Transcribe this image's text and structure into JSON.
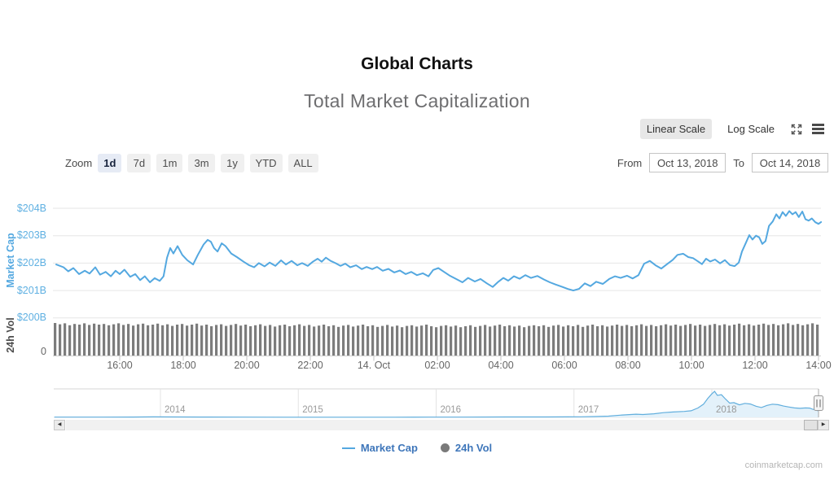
{
  "page": {
    "title": "Global Charts",
    "watermark": "coinmarketcap.com"
  },
  "chart": {
    "title": "Total Market Capitalization",
    "scale_toggle": {
      "options": [
        "Linear Scale",
        "Log Scale"
      ],
      "selected": "Linear Scale"
    },
    "range_selector": {
      "zoom_label": "Zoom",
      "buttons": [
        "1d",
        "7d",
        "1m",
        "3m",
        "1y",
        "YTD",
        "ALL"
      ],
      "selected": "1d",
      "from_label": "From",
      "from_value": "Oct 13, 2018",
      "to_label": "To",
      "to_value": "Oct 14, 2018"
    },
    "legend": [
      {
        "name": "Market Cap",
        "marker": "line",
        "color": "#54a8e0"
      },
      {
        "name": "24h Vol",
        "marker": "circle",
        "color": "#7a7a7a"
      }
    ]
  },
  "chart_data": {
    "type": "line",
    "title": "Total Market Capitalization",
    "x_start": "Oct 13, 2018 14:00",
    "x_end": "Oct 14, 2018 14:05",
    "xaxis_ticks": [
      {
        "label": "16:00",
        "hour": 2
      },
      {
        "label": "18:00",
        "hour": 4
      },
      {
        "label": "20:00",
        "hour": 6
      },
      {
        "label": "22:00",
        "hour": 8
      },
      {
        "label": "14. Oct",
        "hour": 10
      },
      {
        "label": "02:00",
        "hour": 12
      },
      {
        "label": "04:00",
        "hour": 14
      },
      {
        "label": "06:00",
        "hour": 16
      },
      {
        "label": "08:00",
        "hour": 18
      },
      {
        "label": "10:00",
        "hour": 20
      },
      {
        "label": "12:00",
        "hour": 22
      },
      {
        "label": "14:00",
        "hour": 24
      }
    ],
    "yaxis": {
      "title": "Market Cap",
      "unit": "USD billions",
      "tick_labels": [
        "$204B",
        "$203B",
        "$202B",
        "$201B",
        "$200B"
      ],
      "tick_values": [
        204,
        203,
        202,
        201,
        200
      ],
      "range": [
        199.6,
        204.5
      ]
    },
    "volume_axis": {
      "title": "24h Vol",
      "tick_labels": [
        "0"
      ]
    },
    "series": [
      {
        "name": "Market Cap",
        "type": "line",
        "color": "#54a8e0",
        "points_hours_value": [
          [
            0,
            201.95
          ],
          [
            0.23,
            201.85
          ],
          [
            0.38,
            201.7
          ],
          [
            0.54,
            201.82
          ],
          [
            0.72,
            201.6
          ],
          [
            0.9,
            201.72
          ],
          [
            1.05,
            201.62
          ],
          [
            1.23,
            201.85
          ],
          [
            1.38,
            201.58
          ],
          [
            1.56,
            201.68
          ],
          [
            1.72,
            201.52
          ],
          [
            1.87,
            201.72
          ],
          [
            2,
            201.6
          ],
          [
            2.15,
            201.76
          ],
          [
            2.33,
            201.5
          ],
          [
            2.49,
            201.6
          ],
          [
            2.64,
            201.38
          ],
          [
            2.79,
            201.52
          ],
          [
            2.95,
            201.3
          ],
          [
            3.1,
            201.45
          ],
          [
            3.26,
            201.35
          ],
          [
            3.38,
            201.52
          ],
          [
            3.49,
            202.2
          ],
          [
            3.59,
            202.55
          ],
          [
            3.69,
            202.35
          ],
          [
            3.82,
            202.62
          ],
          [
            3.97,
            202.3
          ],
          [
            4.13,
            202.1
          ],
          [
            4.31,
            201.95
          ],
          [
            4.46,
            202.3
          ],
          [
            4.64,
            202.68
          ],
          [
            4.77,
            202.85
          ],
          [
            4.87,
            202.78
          ],
          [
            4.97,
            202.55
          ],
          [
            5.08,
            202.42
          ],
          [
            5.21,
            202.72
          ],
          [
            5.33,
            202.62
          ],
          [
            5.51,
            202.35
          ],
          [
            5.69,
            202.22
          ],
          [
            5.9,
            202.05
          ],
          [
            6.08,
            201.92
          ],
          [
            6.23,
            201.85
          ],
          [
            6.38,
            202
          ],
          [
            6.56,
            201.88
          ],
          [
            6.72,
            202.02
          ],
          [
            6.9,
            201.9
          ],
          [
            7.08,
            202.1
          ],
          [
            7.23,
            201.95
          ],
          [
            7.41,
            202.08
          ],
          [
            7.59,
            201.92
          ],
          [
            7.74,
            202
          ],
          [
            7.92,
            201.9
          ],
          [
            8.08,
            202.05
          ],
          [
            8.23,
            202.16
          ],
          [
            8.36,
            202.05
          ],
          [
            8.49,
            202.2
          ],
          [
            8.64,
            202.08
          ],
          [
            8.79,
            202
          ],
          [
            8.95,
            201.9
          ],
          [
            9.1,
            201.98
          ],
          [
            9.26,
            201.85
          ],
          [
            9.44,
            201.92
          ],
          [
            9.62,
            201.78
          ],
          [
            9.77,
            201.86
          ],
          [
            9.95,
            201.78
          ],
          [
            10.1,
            201.86
          ],
          [
            10.28,
            201.72
          ],
          [
            10.46,
            201.79
          ],
          [
            10.64,
            201.66
          ],
          [
            10.82,
            201.73
          ],
          [
            11,
            201.6
          ],
          [
            11.18,
            201.68
          ],
          [
            11.36,
            201.56
          ],
          [
            11.54,
            201.63
          ],
          [
            11.72,
            201.52
          ],
          [
            11.87,
            201.75
          ],
          [
            12.03,
            201.82
          ],
          [
            12.21,
            201.68
          ],
          [
            12.38,
            201.55
          ],
          [
            12.59,
            201.42
          ],
          [
            12.79,
            201.3
          ],
          [
            12.97,
            201.46
          ],
          [
            13.18,
            201.33
          ],
          [
            13.36,
            201.42
          ],
          [
            13.56,
            201.26
          ],
          [
            13.74,
            201.13
          ],
          [
            13.92,
            201.32
          ],
          [
            14.08,
            201.46
          ],
          [
            14.23,
            201.36
          ],
          [
            14.41,
            201.52
          ],
          [
            14.59,
            201.43
          ],
          [
            14.77,
            201.56
          ],
          [
            14.95,
            201.46
          ],
          [
            15.15,
            201.53
          ],
          [
            15.36,
            201.4
          ],
          [
            15.54,
            201.3
          ],
          [
            15.72,
            201.22
          ],
          [
            15.92,
            201.14
          ],
          [
            16.1,
            201.06
          ],
          [
            16.28,
            201
          ],
          [
            16.46,
            201.06
          ],
          [
            16.64,
            201.26
          ],
          [
            16.82,
            201.16
          ],
          [
            17,
            201.32
          ],
          [
            17.21,
            201.24
          ],
          [
            17.41,
            201.42
          ],
          [
            17.59,
            201.52
          ],
          [
            17.77,
            201.46
          ],
          [
            17.97,
            201.54
          ],
          [
            18.15,
            201.44
          ],
          [
            18.33,
            201.56
          ],
          [
            18.51,
            201.98
          ],
          [
            18.69,
            202.08
          ],
          [
            18.87,
            201.92
          ],
          [
            19.05,
            201.8
          ],
          [
            19.23,
            201.96
          ],
          [
            19.41,
            202.12
          ],
          [
            19.56,
            202.3
          ],
          [
            19.74,
            202.34
          ],
          [
            19.9,
            202.22
          ],
          [
            20.05,
            202.18
          ],
          [
            20.21,
            202.06
          ],
          [
            20.33,
            201.96
          ],
          [
            20.46,
            202.16
          ],
          [
            20.59,
            202.06
          ],
          [
            20.74,
            202.13
          ],
          [
            20.9,
            201.99
          ],
          [
            21.05,
            202.11
          ],
          [
            21.21,
            201.93
          ],
          [
            21.36,
            201.89
          ],
          [
            21.49,
            202.02
          ],
          [
            21.59,
            202.42
          ],
          [
            21.72,
            202.76
          ],
          [
            21.82,
            203.02
          ],
          [
            21.92,
            202.86
          ],
          [
            22.03,
            203
          ],
          [
            22.13,
            202.94
          ],
          [
            22.23,
            202.7
          ],
          [
            22.33,
            202.8
          ],
          [
            22.44,
            203.36
          ],
          [
            22.56,
            203.52
          ],
          [
            22.67,
            203.78
          ],
          [
            22.77,
            203.63
          ],
          [
            22.87,
            203.86
          ],
          [
            22.97,
            203.72
          ],
          [
            23.08,
            203.9
          ],
          [
            23.18,
            203.78
          ],
          [
            23.28,
            203.86
          ],
          [
            23.38,
            203.68
          ],
          [
            23.49,
            203.88
          ],
          [
            23.59,
            203.6
          ],
          [
            23.69,
            203.55
          ],
          [
            23.79,
            203.63
          ],
          [
            23.9,
            203.49
          ],
          [
            24,
            203.43
          ],
          [
            24.08,
            203.5
          ]
        ]
      },
      {
        "name": "24h Vol",
        "type": "column",
        "color": "#7c7c7c",
        "bars_normalized": [
          1.0,
          0.96,
          0.99,
          0.93,
          0.97,
          0.95,
          0.99,
          0.94,
          0.98,
          0.95,
          0.97,
          0.93,
          0.96,
          0.99,
          0.94,
          0.97,
          0.92,
          0.96,
          0.98,
          0.93,
          0.95,
          0.98,
          0.93,
          0.96,
          0.91,
          0.95,
          0.97,
          0.92,
          0.95,
          0.98,
          0.92,
          0.95,
          0.9,
          0.94,
          0.96,
          0.91,
          0.94,
          0.97,
          0.92,
          0.95,
          0.9,
          0.93,
          0.96,
          0.91,
          0.94,
          0.89,
          0.93,
          0.95,
          0.9,
          0.93,
          0.96,
          0.91,
          0.94,
          0.89,
          0.92,
          0.95,
          0.9,
          0.93,
          0.88,
          0.92,
          0.94,
          0.89,
          0.92,
          0.95,
          0.9,
          0.93,
          0.88,
          0.91,
          0.94,
          0.89,
          0.92,
          0.87,
          0.91,
          0.93,
          0.89,
          0.92,
          0.95,
          0.9,
          0.87,
          0.91,
          0.93,
          0.89,
          0.92,
          0.87,
          0.9,
          0.93,
          0.88,
          0.91,
          0.94,
          0.89,
          0.92,
          0.95,
          0.9,
          0.93,
          0.89,
          0.92,
          0.87,
          0.91,
          0.93,
          0.9,
          0.93,
          0.88,
          0.92,
          0.94,
          0.89,
          0.93,
          0.9,
          0.94,
          0.88,
          0.92,
          0.95,
          0.9,
          0.93,
          0.89,
          0.92,
          0.95,
          0.91,
          0.94,
          0.9,
          0.93,
          0.96,
          0.91,
          0.94,
          0.9,
          0.93,
          0.96,
          0.92,
          0.95,
          0.91,
          0.94,
          0.97,
          0.92,
          0.95,
          0.91,
          0.94,
          0.97,
          0.93,
          0.96,
          0.92,
          0.95,
          0.98,
          0.93,
          0.96,
          0.92,
          0.95,
          0.98,
          0.94,
          0.97,
          0.93,
          0.96,
          0.99,
          0.94,
          0.97,
          0.93,
          0.96,
          0.99,
          0.95
        ]
      }
    ],
    "navigator": {
      "year_labels": [
        "2014",
        "2015",
        "2016",
        "2017",
        "2018"
      ],
      "unit": "USD billions",
      "peak_value_billion": 830,
      "points_year_billion": [
        [
          2013.23,
          8
        ],
        [
          2013.5,
          9
        ],
        [
          2013.8,
          10
        ],
        [
          2013.95,
          15
        ],
        [
          2014.1,
          12
        ],
        [
          2014.3,
          10
        ],
        [
          2014.6,
          8
        ],
        [
          2014.9,
          6
        ],
        [
          2015.1,
          5
        ],
        [
          2015.4,
          5
        ],
        [
          2015.7,
          6
        ],
        [
          2015.95,
          8
        ],
        [
          2016.2,
          9
        ],
        [
          2016.5,
          12
        ],
        [
          2016.8,
          14
        ],
        [
          2016.95,
          15
        ],
        [
          2017.05,
          19
        ],
        [
          2017.15,
          26
        ],
        [
          2017.25,
          40
        ],
        [
          2017.35,
          75
        ],
        [
          2017.45,
          100
        ],
        [
          2017.5,
          90
        ],
        [
          2017.58,
          115
        ],
        [
          2017.65,
          150
        ],
        [
          2017.72,
          170
        ],
        [
          2017.8,
          190
        ],
        [
          2017.85,
          210
        ],
        [
          2017.9,
          300
        ],
        [
          2017.94,
          420
        ],
        [
          2017.97,
          600
        ],
        [
          2018,
          750
        ],
        [
          2018.02,
          830
        ],
        [
          2018.04,
          700
        ],
        [
          2018.07,
          720
        ],
        [
          2018.1,
          580
        ],
        [
          2018.13,
          455
        ],
        [
          2018.16,
          470
        ],
        [
          2018.2,
          400
        ],
        [
          2018.24,
          445
        ],
        [
          2018.28,
          425
        ],
        [
          2018.32,
          355
        ],
        [
          2018.36,
          315
        ],
        [
          2018.4,
          380
        ],
        [
          2018.44,
          420
        ],
        [
          2018.48,
          405
        ],
        [
          2018.52,
          360
        ],
        [
          2018.56,
          330
        ],
        [
          2018.6,
          300
        ],
        [
          2018.64,
          288
        ],
        [
          2018.68,
          300
        ],
        [
          2018.71,
          295
        ],
        [
          2018.73,
          262
        ],
        [
          2018.75,
          240
        ],
        [
          2018.77,
          208
        ]
      ]
    }
  }
}
